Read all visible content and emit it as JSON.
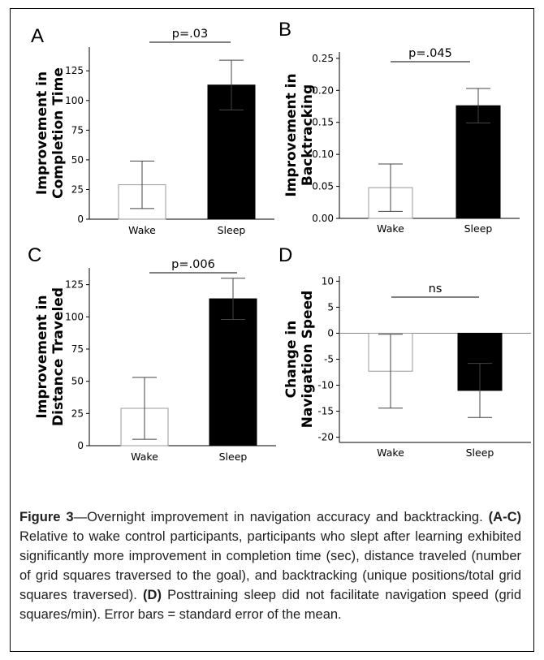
{
  "chart_data": [
    {
      "panel_letter": "A",
      "type": "bar",
      "categories": [
        "Wake",
        "Sleep"
      ],
      "values": [
        29,
        113
      ],
      "errors": [
        20,
        21
      ],
      "bar_colors": [
        "#ffffff",
        "#000000"
      ],
      "ylabel_lines": [
        "Improvement in",
        "Completion Time"
      ],
      "ylim": [
        0,
        145
      ],
      "yticks": [
        0,
        25,
        50,
        75,
        100,
        125
      ],
      "ytick_labels": [
        "0",
        "25",
        "50",
        "75",
        "100",
        "125"
      ],
      "significance": "p=.03"
    },
    {
      "panel_letter": "B",
      "type": "bar",
      "categories": [
        "Wake",
        "Sleep"
      ],
      "values": [
        0.048,
        0.176
      ],
      "errors": [
        0.037,
        0.027
      ],
      "bar_colors": [
        "#ffffff",
        "#000000"
      ],
      "ylabel_lines": [
        "Improvement in",
        "Backtracking"
      ],
      "ylim": [
        0,
        0.26
      ],
      "yticks": [
        0,
        0.05,
        0.1,
        0.15,
        0.2,
        0.25
      ],
      "ytick_labels": [
        "0.00",
        "0.05",
        "0.10",
        "0.15",
        "0.20",
        "0.25"
      ],
      "significance": "p=.045"
    },
    {
      "panel_letter": "C",
      "type": "bar",
      "categories": [
        "Wake",
        "Sleep"
      ],
      "values": [
        29,
        114
      ],
      "errors": [
        24,
        16
      ],
      "bar_colors": [
        "#ffffff",
        "#000000"
      ],
      "ylabel_lines": [
        "Improvement in",
        "Distance Traveled"
      ],
      "ylim": [
        0,
        138
      ],
      "yticks": [
        0,
        25,
        50,
        75,
        100,
        125
      ],
      "ytick_labels": [
        "0",
        "25",
        "50",
        "75",
        "100",
        "125"
      ],
      "significance": "p=.006"
    },
    {
      "panel_letter": "D",
      "type": "bar",
      "categories": [
        "Wake",
        "Sleep"
      ],
      "values": [
        -7.3,
        -11
      ],
      "errors": [
        7.1,
        5.2
      ],
      "bar_colors": [
        "#ffffff",
        "#000000"
      ],
      "ylabel_lines": [
        "Change in",
        "Navigation Speed"
      ],
      "ylim": [
        -21,
        11
      ],
      "yticks": [
        -20,
        -15,
        -10,
        -5,
        0,
        5,
        10
      ],
      "ytick_labels": [
        "-20",
        "-15",
        "-10",
        "-5",
        "0",
        "5",
        "10"
      ],
      "significance": "ns",
      "zero_line": true
    }
  ],
  "caption": {
    "label": "Figure 3",
    "title": "—Overnight improvement in navigation accuracy and backtracking.",
    "abc_label": "(A-C)",
    "abc_text": "Relative to wake control participants, participants who slept after learning exhibited significantly more improvement in completion time (sec), distance traveled (number of grid squares traversed to the goal), and backtracking (unique positions/total grid squares traversed).",
    "d_label": "(D)",
    "d_text": "Posttraining sleep did not facilitate navigation speed (grid squares/min). Error bars = standard error of the mean."
  }
}
